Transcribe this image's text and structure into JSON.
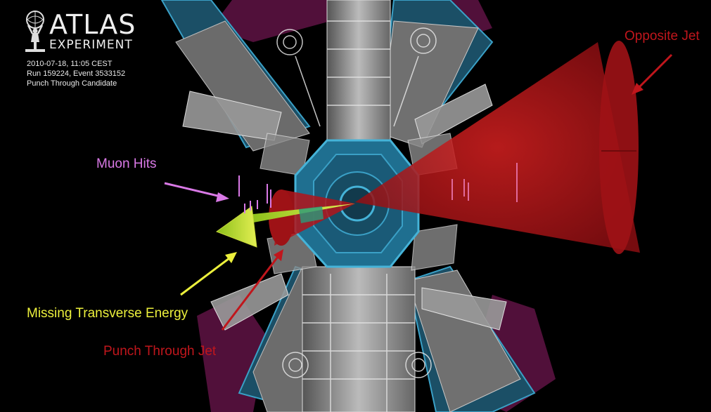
{
  "logo": {
    "line1": "ATLAS",
    "line2": "EXPERIMENT"
  },
  "event_info": {
    "datetime": "2010-07-18, 11:05 CEST",
    "run_event": "Run 159224, Event 3533152",
    "description": "Punch Through Candidate"
  },
  "annotations": {
    "opposite_jet": "Opposite Jet",
    "muon_hits": "Muon Hits",
    "missing_et": "Missing Transverse Energy",
    "punch_through_jet": "Punch Through Jet"
  },
  "colors": {
    "opposite_jet": "#c0161c",
    "muon_hits": "#d979e6",
    "missing_et": "#ecf03c",
    "punch_through_jet": "#c0161c",
    "calorimeter": "#2a8fb8",
    "muon_chamber": "#8a1a5a"
  }
}
